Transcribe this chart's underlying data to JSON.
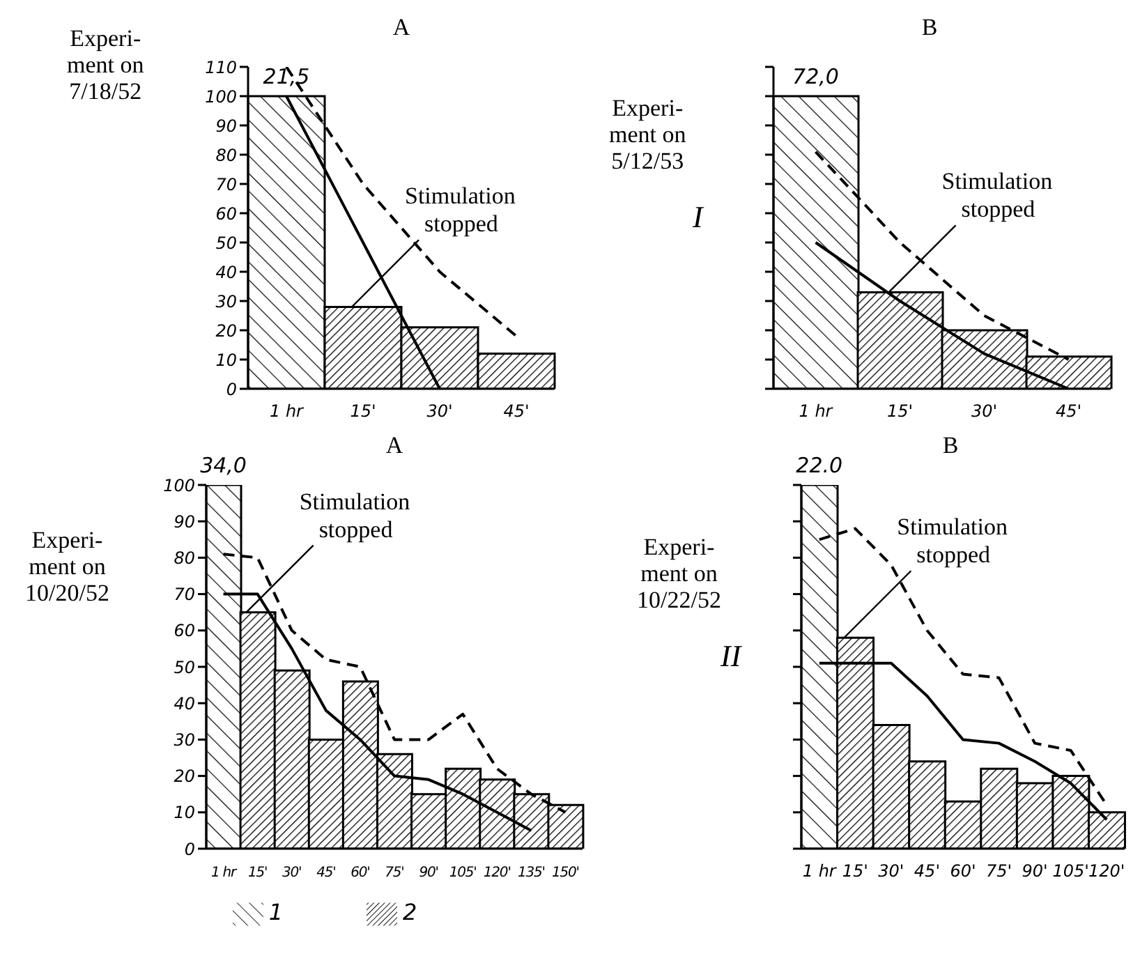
{
  "chart_data": [
    {
      "type": "bar",
      "title": "A",
      "stacked": true,
      "categories": [
        "1 hr",
        "15'",
        "30'",
        "45'"
      ],
      "ylim": [
        0,
        110
      ],
      "yticks": [
        0,
        10,
        20,
        30,
        40,
        50,
        60,
        70,
        80,
        90,
        100,
        110
      ],
      "series": [
        {
          "color": "#000000",
          "values": [
            100,
            null,
            null,
            null
          ]
        },
        {
          "color": "#000000",
          "values": [
            null,
            28,
            21,
            12
          ]
        },
        {
          "type": "line",
          "color": "#000000",
          "line_style": "solid",
          "values": [
            100,
            50,
            0,
            null
          ]
        },
        {
          "type": "line",
          "color": "#000000",
          "line_style": "dashed",
          "values": [
            110,
            70,
            40,
            18
          ]
        }
      ],
      "annotations": [
        "Experi-\nment on\n7/18/52",
        {
          "text": "21,5",
          "x": "1 hr",
          "y": 100
        },
        {
          "text": "Stimulation stopped",
          "x": "15'",
          "y": 28
        }
      ]
    },
    {
      "type": "bar",
      "title": "B",
      "stacked": true,
      "tick_labels": "x",
      "categories": [
        "1 hr",
        "15'",
        "30'",
        "45'"
      ],
      "ylim": [
        0,
        110
      ],
      "yticks": [
        0,
        10,
        20,
        30,
        40,
        50,
        60,
        70,
        80,
        90,
        100,
        110
      ],
      "series": [
        {
          "color": "#000000",
          "values": [
            100,
            null,
            null,
            null
          ]
        },
        {
          "color": "#000000",
          "values": [
            null,
            33,
            20,
            11
          ]
        },
        {
          "type": "line",
          "color": "#000000",
          "line_style": "solid",
          "values": [
            50,
            30,
            12,
            0
          ]
        },
        {
          "type": "line",
          "color": "#000000",
          "line_style": "dashed",
          "values": [
            81,
            50,
            25,
            10
          ]
        }
      ],
      "annotations": [
        "Experi-\nment on\n5/12/53",
        "I",
        {
          "text": "72,0",
          "x": "1 hr",
          "y": 100
        },
        {
          "text": "Stimulation stopped",
          "x": "15'",
          "y": 33
        }
      ]
    },
    {
      "type": "bar",
      "title": "A",
      "stacked": true,
      "legend": "bottom",
      "categories": [
        "1 hr",
        "15'",
        "30'",
        "45'",
        "60'",
        "75'",
        "90'",
        "105'",
        "120'",
        "135'",
        "150'"
      ],
      "ylim": [
        0,
        100
      ],
      "yticks": [
        0,
        10,
        20,
        30,
        40,
        50,
        60,
        70,
        80,
        90,
        100
      ],
      "series": [
        {
          "name": "1",
          "color": "#000000",
          "values": [
            100,
            null,
            null,
            null,
            null,
            null,
            null,
            null,
            null,
            null,
            null
          ]
        },
        {
          "name": "2",
          "color": "#000000",
          "values": [
            null,
            65,
            49,
            30,
            46,
            26,
            15,
            22,
            19,
            15,
            12
          ]
        },
        {
          "type": "line",
          "color": "#000000",
          "line_style": "solid",
          "values": [
            70,
            70,
            55,
            38,
            30,
            20,
            19,
            15,
            10,
            5,
            null
          ]
        },
        {
          "type": "line",
          "color": "#000000",
          "line_style": "dashed",
          "values": [
            81,
            80,
            60,
            52,
            50,
            30,
            30,
            37,
            22,
            15,
            10
          ]
        }
      ],
      "annotations": [
        "Experi-\nment on\n10/20/52",
        {
          "text": "34,0",
          "x": "1 hr",
          "y": 100
        },
        {
          "text": "Stimulation stopped",
          "x": "15'",
          "y": 65
        }
      ]
    },
    {
      "type": "bar",
      "title": "B",
      "stacked": true,
      "tick_labels": "x",
      "categories": [
        "1 hr",
        "15'",
        "30'",
        "45'",
        "60'",
        "75'",
        "90'",
        "105'",
        "120'"
      ],
      "ylim": [
        0,
        100
      ],
      "yticks": [
        0,
        10,
        20,
        30,
        40,
        50,
        60,
        70,
        80,
        90,
        100
      ],
      "series": [
        {
          "color": "#000000",
          "values": [
            100,
            null,
            null,
            null,
            null,
            null,
            null,
            null,
            null
          ]
        },
        {
          "color": "#000000",
          "values": [
            null,
            58,
            34,
            24,
            13,
            22,
            18,
            20,
            10
          ]
        },
        {
          "type": "line",
          "color": "#000000",
          "line_style": "solid",
          "values": [
            51,
            51,
            51,
            42,
            30,
            29,
            24,
            18,
            8
          ]
        },
        {
          "type": "line",
          "color": "#000000",
          "line_style": "dashed",
          "values": [
            85,
            88,
            78,
            60,
            48,
            47,
            29,
            27,
            12
          ]
        }
      ],
      "annotations": [
        "Experi-\nment on\n10/22/52",
        "II",
        {
          "text": "22.0",
          "x": "1 hr",
          "y": 100
        },
        {
          "text": "Stimulation stopped",
          "x": "15'",
          "y": 58
        }
      ]
    }
  ]
}
